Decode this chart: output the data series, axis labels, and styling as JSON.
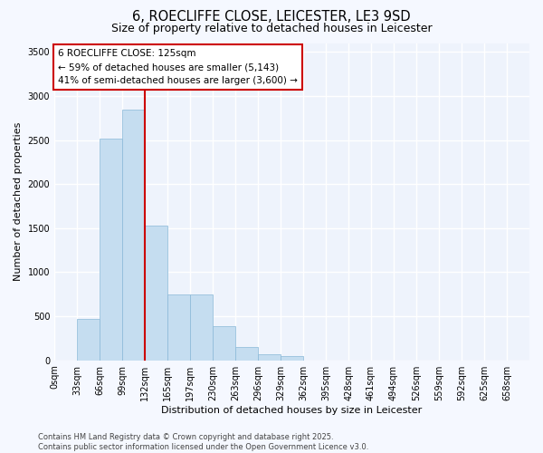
{
  "title_line1": "6, ROECLIFFE CLOSE, LEICESTER, LE3 9SD",
  "title_line2": "Size of property relative to detached houses in Leicester",
  "xlabel": "Distribution of detached houses by size in Leicester",
  "ylabel": "Number of detached properties",
  "bar_color": "#c5ddf0",
  "bar_edge_color": "#89b8d8",
  "background_color": "#f5f8ff",
  "plot_bg_color": "#eef3fc",
  "grid_color": "#ffffff",
  "categories": [
    "0sqm",
    "33sqm",
    "66sqm",
    "99sqm",
    "132sqm",
    "165sqm",
    "197sqm",
    "230sqm",
    "263sqm",
    "296sqm",
    "329sqm",
    "362sqm",
    "395sqm",
    "428sqm",
    "461sqm",
    "494sqm",
    "526sqm",
    "559sqm",
    "592sqm",
    "625sqm",
    "658sqm"
  ],
  "values": [
    0,
    470,
    2520,
    2840,
    1530,
    750,
    750,
    390,
    150,
    65,
    50,
    0,
    0,
    0,
    0,
    0,
    0,
    0,
    0,
    0,
    0
  ],
  "ylim": [
    0,
    3600
  ],
  "yticks": [
    0,
    500,
    1000,
    1500,
    2000,
    2500,
    3000,
    3500
  ],
  "annotation_line1": "6 ROECLIFFE CLOSE: 125sqm",
  "annotation_line2": "← 59% of detached houses are smaller (5,143)",
  "annotation_line3": "41% of semi-detached houses are larger (3,600) →",
  "annotation_box_facecolor": "#ffffff",
  "annotation_border_color": "#cc0000",
  "footer_line1": "Contains HM Land Registry data © Crown copyright and database right 2025.",
  "footer_line2": "Contains public sector information licensed under the Open Government Licence v3.0.",
  "title_fontsize": 10.5,
  "subtitle_fontsize": 9,
  "axis_label_fontsize": 8,
  "tick_fontsize": 7,
  "annotation_fontsize": 7.5,
  "footer_fontsize": 6,
  "property_line_color": "#cc0000",
  "property_line_x": 4.0
}
